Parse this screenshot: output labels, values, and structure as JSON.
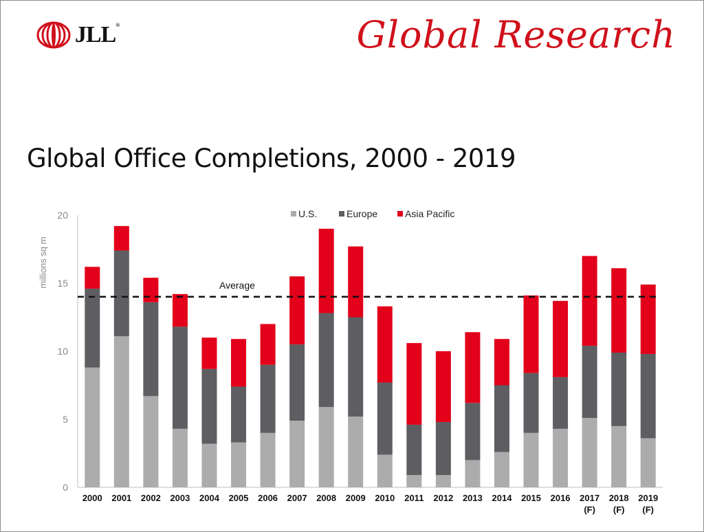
{
  "header": {
    "logo_text": "JLL",
    "logo_mark": "®",
    "brand_title": "Global Research"
  },
  "chart_data": {
    "type": "bar",
    "stacked": true,
    "title": "Global Office Completions, 2000 - 2019",
    "ylabel": "millions sq m",
    "xlabel": "",
    "ylim": [
      0,
      20
    ],
    "yticks": [
      0,
      5,
      10,
      15,
      20
    ],
    "categories": [
      "2000",
      "2001",
      "2002",
      "2003",
      "2004",
      "2005",
      "2006",
      "2007",
      "2008",
      "2009",
      "2010",
      "2011",
      "2012",
      "2013",
      "2014",
      "2015",
      "2016",
      "2017\n(F)",
      "2018\n(F)",
      "2019\n(F)"
    ],
    "series": [
      {
        "name": "U.S.",
        "color": "#acacac",
        "values": [
          8.8,
          11.1,
          6.7,
          4.3,
          3.2,
          3.3,
          4.0,
          4.9,
          5.9,
          5.2,
          2.4,
          0.9,
          0.9,
          2.0,
          2.6,
          4.0,
          4.3,
          5.1,
          4.5,
          3.6
        ]
      },
      {
        "name": "Europe",
        "color": "#5e5e62",
        "values": [
          5.8,
          6.3,
          6.9,
          7.5,
          5.5,
          4.1,
          5.0,
          5.6,
          6.9,
          7.3,
          5.3,
          3.7,
          3.9,
          4.2,
          4.9,
          4.4,
          3.8,
          5.3,
          5.4,
          6.2
        ]
      },
      {
        "name": "Asia Pacific",
        "color": "#e2001a",
        "values": [
          1.6,
          1.8,
          1.8,
          2.4,
          2.3,
          3.5,
          3.0,
          5.0,
          6.2,
          5.2,
          5.6,
          6.0,
          5.2,
          5.2,
          3.4,
          5.7,
          5.6,
          6.6,
          6.2,
          5.1
        ]
      }
    ],
    "annotations": [
      {
        "type": "hline",
        "label": "Average",
        "value": 14.0,
        "style": "dashed"
      }
    ],
    "legend": "top-center",
    "grid": false
  }
}
